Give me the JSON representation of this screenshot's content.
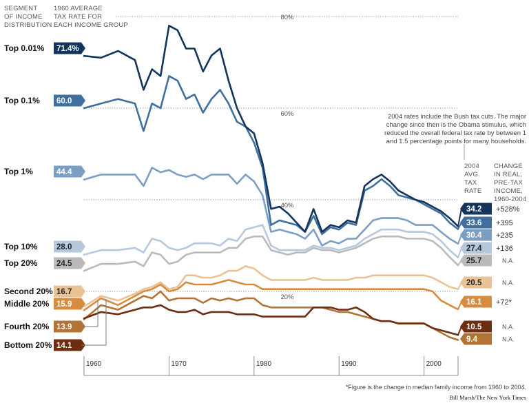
{
  "header": {
    "segment_col": [
      "SEGMENT",
      "OF INCOME",
      "DISTRIBUTION"
    ],
    "rate1960_col": [
      "1960 AVERAGE",
      "TAX RATE FOR",
      "EACH INCOME GROUP"
    ],
    "rate2004_col": [
      "2004",
      "AVG.",
      "TAX",
      "RATE"
    ],
    "change_col": [
      "CHANGE",
      "IN REAL,",
      "PRE-TAX",
      "INCOME,",
      "1960-2004"
    ]
  },
  "annotation": [
    "2004 rates include the Bush tax cuts. The major",
    "change since then is the Obama stimulus, which",
    "reduced the overall federal tax rate by between 1",
    "and 1.5 percentage points for many households."
  ],
  "footnote": "*Figure is the change in median family income from 1960 to 2004.",
  "credit": "Bill Marsh/The New York Times",
  "colors": {
    "top001": "#13355b",
    "top01": "#3f6f9f",
    "top1": "#7b9ec4",
    "top10": "#b5c8de",
    "top20": "#bababa",
    "second20": "#e9c396",
    "middle20": "#d58c3e",
    "fourth20": "#b27334",
    "bottom20": "#6e2c10"
  },
  "chart_data": {
    "type": "line",
    "x_ticks": [
      1960,
      1970,
      1980,
      1990,
      2000
    ],
    "x_range": [
      1960,
      2004
    ],
    "y_range": [
      0,
      80
    ],
    "reference_lines": [
      {
        "value": 80,
        "label": "80%"
      },
      {
        "value": 60,
        "label": "60%"
      },
      {
        "value": 40,
        "label": "40%"
      },
      {
        "value": 20,
        "label": "20%"
      }
    ],
    "x": [
      1960,
      1962,
      1964,
      1966,
      1967,
      1968,
      1969,
      1970,
      1971,
      1972,
      1973,
      1974,
      1975,
      1976,
      1977,
      1978,
      1979,
      1980,
      1981,
      1982,
      1983,
      1984,
      1985,
      1986,
      1987,
      1988,
      1989,
      1990,
      1991,
      1992,
      1993,
      1994,
      1995,
      1996,
      1997,
      1998,
      1999,
      2000,
      2001,
      2002,
      2003,
      2004
    ],
    "series": [
      {
        "key": "top001",
        "name": "Top 0.01%",
        "rate1960": "71.4%",
        "rate2004": "34.2",
        "change": "+528%",
        "values": [
          71.4,
          71.0,
          72.5,
          70.5,
          64.0,
          68.5,
          67.0,
          78.0,
          77.0,
          73.0,
          73.0,
          68.0,
          71.5,
          73.0,
          66.0,
          60.0,
          56.0,
          54.5,
          48.0,
          38.0,
          38.5,
          37.0,
          35.0,
          33.0,
          38.0,
          33.0,
          34.5,
          34.0,
          35.5,
          35.0,
          43.0,
          44.5,
          45.5,
          44.0,
          42.0,
          41.0,
          40.0,
          39.5,
          38.5,
          37.5,
          36.0,
          34.2
        ]
      },
      {
        "key": "top01",
        "name": "Top 0.1%",
        "rate1960": "60.0",
        "rate2004": "33.6",
        "change": "+395",
        "values": [
          60.0,
          61.0,
          62.0,
          61.0,
          55.0,
          61.0,
          60.0,
          67.0,
          66.0,
          62.0,
          63.0,
          59.0,
          62.0,
          64.0,
          61.0,
          57.0,
          56.0,
          52.5,
          47.0,
          34.5,
          35.5,
          35.0,
          34.5,
          33.0,
          36.5,
          32.5,
          34.0,
          33.5,
          35.0,
          34.5,
          42.0,
          43.0,
          44.5,
          43.0,
          41.0,
          40.5,
          40.0,
          39.0,
          38.0,
          37.0,
          35.0,
          33.6
        ]
      },
      {
        "key": "top1",
        "name": "Top 1%",
        "rate1960": "44.4",
        "rate2004": "30.4",
        "change": "+235",
        "values": [
          44.4,
          45.5,
          45.5,
          45.5,
          43.0,
          47.0,
          46.0,
          46.5,
          45.5,
          45.0,
          45.5,
          44.5,
          45.5,
          45.5,
          45.5,
          43.5,
          45.5,
          44.0,
          41.0,
          33.0,
          33.5,
          33.0,
          32.5,
          31.5,
          33.5,
          30.0,
          31.0,
          30.5,
          31.5,
          31.5,
          33.5,
          35.5,
          36.0,
          36.0,
          36.0,
          35.5,
          34.5,
          34.5,
          34.5,
          33.0,
          31.5,
          30.4
        ]
      },
      {
        "key": "top10",
        "name": "Top 10%",
        "rate1960": "28.0",
        "rate2004": "27.4",
        "change": "+136",
        "values": [
          28.0,
          29.0,
          29.0,
          29.5,
          28.5,
          31.5,
          31.0,
          29.5,
          29.0,
          29.5,
          30.5,
          30.5,
          30.5,
          30.0,
          31.5,
          31.0,
          33.5,
          34.0,
          34.5,
          30.0,
          29.0,
          29.0,
          29.0,
          29.0,
          30.0,
          29.5,
          29.5,
          29.0,
          29.5,
          30.0,
          31.5,
          32.5,
          33.5,
          33.5,
          33.5,
          33.0,
          33.0,
          33.0,
          32.5,
          31.0,
          29.0,
          27.4
        ]
      },
      {
        "key": "top20",
        "name": "Top 20%",
        "rate1960": "24.5",
        "rate2004": "25.7",
        "change": "N.A.",
        "values": [
          24.5,
          26.0,
          26.0,
          26.5,
          25.5,
          28.5,
          28.0,
          26.0,
          26.5,
          28.0,
          28.5,
          28.5,
          28.5,
          28.5,
          29.5,
          29.5,
          31.5,
          32.0,
          32.0,
          29.0,
          28.5,
          28.0,
          28.5,
          28.5,
          29.5,
          29.0,
          29.0,
          28.5,
          29.0,
          29.5,
          30.5,
          31.5,
          32.0,
          32.0,
          32.0,
          31.5,
          31.5,
          31.5,
          31.0,
          29.5,
          27.5,
          25.7
        ]
      },
      {
        "key": "second20",
        "name": "Second 20%",
        "rate1960": "16.7",
        "rate2004": "20.5",
        "change": "N.A.",
        "values": [
          16.7,
          19.0,
          18.0,
          19.5,
          20.5,
          21.0,
          22.0,
          20.5,
          21.0,
          23.5,
          23.5,
          23.0,
          23.0,
          23.5,
          24.5,
          24.5,
          25.5,
          25.0,
          23.5,
          22.5,
          22.5,
          22.5,
          22.5,
          22.5,
          23.0,
          22.5,
          22.5,
          22.5,
          22.5,
          23.0,
          23.0,
          23.5,
          23.5,
          23.5,
          23.5,
          23.5,
          23.5,
          23.5,
          23.0,
          22.0,
          21.0,
          20.5
        ]
      },
      {
        "key": "middle20",
        "name": "Middle 20%",
        "rate1960": "15.9",
        "rate2004": "16.1",
        "change": "+72*",
        "values": [
          15.9,
          18.5,
          17.0,
          19.0,
          20.0,
          20.5,
          21.5,
          20.0,
          20.5,
          22.0,
          21.5,
          21.5,
          21.5,
          22.0,
          22.5,
          22.0,
          21.5,
          21.5,
          20.5,
          20.5,
          20.5,
          20.5,
          20.5,
          20.5,
          20.5,
          20.5,
          20.5,
          20.5,
          20.5,
          20.5,
          20.5,
          20.5,
          20.5,
          20.5,
          20.5,
          20.5,
          20.5,
          20.5,
          20.0,
          18.0,
          17.0,
          16.1
        ]
      },
      {
        "key": "fourth20",
        "name": "Fourth 20%",
        "rate1960": "13.9",
        "rate2004": "9.4",
        "change": "N.A.",
        "values": [
          13.9,
          17.0,
          16.0,
          18.0,
          19.0,
          18.5,
          20.0,
          18.0,
          18.5,
          18.5,
          18.5,
          17.5,
          18.5,
          18.0,
          18.5,
          18.0,
          18.5,
          18.5,
          17.0,
          16.5,
          16.5,
          16.5,
          16.5,
          16.5,
          16.5,
          16.5,
          16.0,
          15.5,
          15.5,
          15.0,
          14.5,
          14.0,
          13.5,
          13.5,
          13.0,
          13.0,
          13.0,
          13.0,
          12.0,
          11.0,
          10.0,
          9.4
        ]
      },
      {
        "key": "bottom20",
        "name": "Bottom 20%",
        "rate1960": "14.1",
        "rate2004": "10.5",
        "change": "N.A.",
        "values": [
          14.1,
          15.5,
          15.0,
          16.0,
          16.5,
          16.5,
          17.0,
          16.0,
          15.5,
          15.5,
          16.0,
          15.0,
          15.5,
          15.5,
          15.5,
          15.0,
          15.0,
          15.0,
          14.5,
          14.5,
          14.5,
          14.5,
          14.5,
          14.5,
          16.5,
          16.5,
          16.5,
          16.0,
          16.0,
          16.5,
          15.5,
          14.0,
          13.5,
          13.5,
          13.0,
          13.0,
          13.0,
          13.0,
          12.0,
          11.5,
          11.0,
          10.5
        ]
      }
    ]
  }
}
